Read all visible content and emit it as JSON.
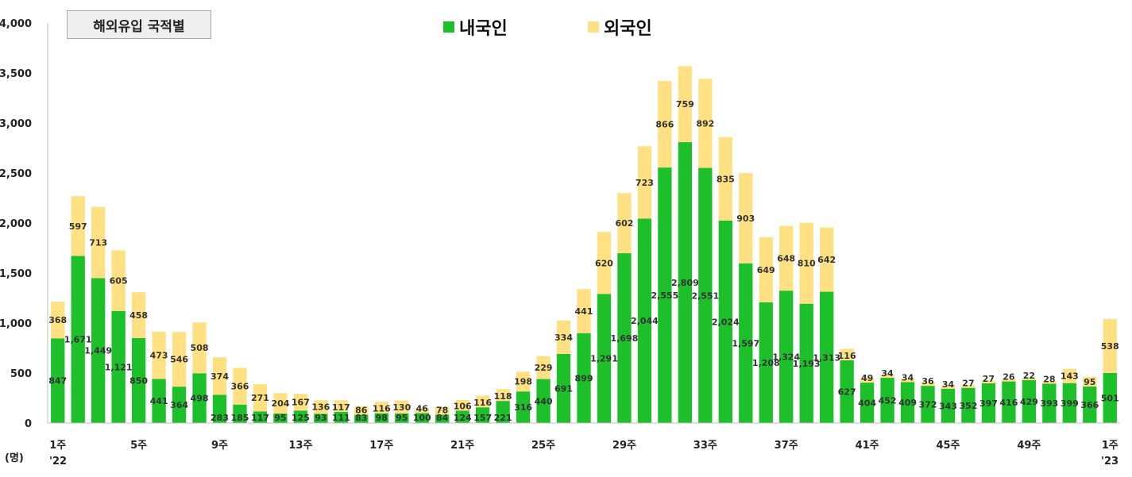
{
  "colors": {
    "domestic": "#1dbf2b",
    "foreign": "#ffe082"
  },
  "title_box": "해외유입 국적별",
  "unit_label": "(명)",
  "year_start": "'22",
  "year_end": "'23",
  "chart_data": {
    "type": "bar",
    "stacked": true,
    "ylim": [
      0,
      4000
    ],
    "yticks": [
      "0",
      "500",
      "1,000",
      "1,500",
      "2,000",
      "2,500",
      "3,000",
      "3,500",
      "4,000"
    ],
    "ytick_values": [
      0,
      500,
      1000,
      1500,
      2000,
      2500,
      3000,
      3500,
      4000
    ],
    "legend_position": "top",
    "grid": false,
    "x_tick_labels": [
      {
        "index": 0,
        "label": "1주"
      },
      {
        "index": 4,
        "label": "5주"
      },
      {
        "index": 8,
        "label": "9주"
      },
      {
        "index": 12,
        "label": "13주"
      },
      {
        "index": 16,
        "label": "17주"
      },
      {
        "index": 20,
        "label": "21주"
      },
      {
        "index": 24,
        "label": "25주"
      },
      {
        "index": 28,
        "label": "29주"
      },
      {
        "index": 32,
        "label": "33주"
      },
      {
        "index": 36,
        "label": "37주"
      },
      {
        "index": 40,
        "label": "41주"
      },
      {
        "index": 44,
        "label": "45주"
      },
      {
        "index": 48,
        "label": "49주"
      },
      {
        "index": 52,
        "label": "1주"
      }
    ],
    "series": [
      {
        "name": "내국인",
        "values": [
          847,
          1671,
          1449,
          1121,
          850,
          441,
          364,
          498,
          283,
          185,
          117,
          95,
          125,
          93,
          111,
          83,
          98,
          95,
          100,
          84,
          124,
          157,
          221,
          316,
          440,
          691,
          899,
          1291,
          1698,
          2044,
          2555,
          2809,
          2551,
          2024,
          1597,
          1208,
          1324,
          1193,
          1313,
          627,
          404,
          452,
          409,
          372,
          343,
          352,
          397,
          416,
          429,
          393,
          399,
          366,
          501
        ]
      },
      {
        "name": "외국인",
        "values": [
          368,
          597,
          713,
          605,
          458,
          473,
          546,
          508,
          374,
          366,
          271,
          204,
          167,
          136,
          117,
          86,
          116,
          130,
          46,
          78,
          106,
          116,
          118,
          198,
          229,
          334,
          441,
          620,
          602,
          723,
          866,
          759,
          892,
          835,
          903,
          649,
          648,
          810,
          642,
          116,
          49,
          34,
          34,
          36,
          34,
          27,
          27,
          26,
          22,
          28,
          143,
          95,
          538
        ]
      }
    ]
  }
}
